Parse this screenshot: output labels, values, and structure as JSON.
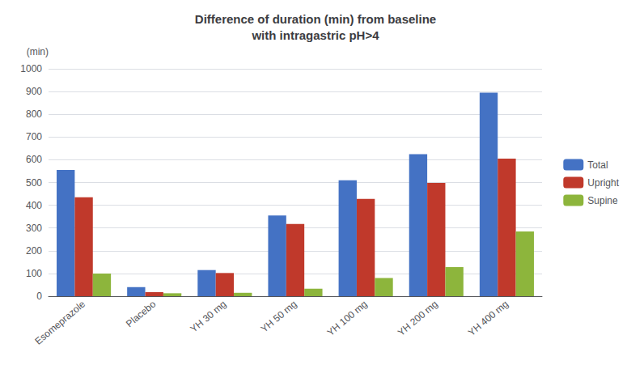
{
  "chart_data": {
    "type": "bar",
    "title": "Difference of duration (min) from baseline\nwith intragastric pH>4",
    "ylabel": "(min)",
    "categories": [
      "Esomeprazole",
      "Placebo",
      "YH 30 mg",
      "YH 50 mg",
      "YH 100 mg",
      "YH 200 mg",
      "YH 400 mg"
    ],
    "series": [
      {
        "name": "Total",
        "color": "#4472C4",
        "values": [
          555,
          40,
          115,
          355,
          510,
          625,
          895
        ]
      },
      {
        "name": "Upright",
        "color": "#C0392B",
        "values": [
          435,
          18,
          102,
          318,
          428,
          498,
          605
        ]
      },
      {
        "name": "Supine",
        "color": "#8DB53C",
        "values": [
          100,
          13,
          15,
          33,
          80,
          128,
          285
        ]
      }
    ],
    "ylim": [
      0,
      1000
    ],
    "yticks": [
      0,
      100,
      200,
      300,
      400,
      500,
      600,
      700,
      800,
      900,
      1000
    ],
    "grid": true,
    "legend": "right"
  }
}
